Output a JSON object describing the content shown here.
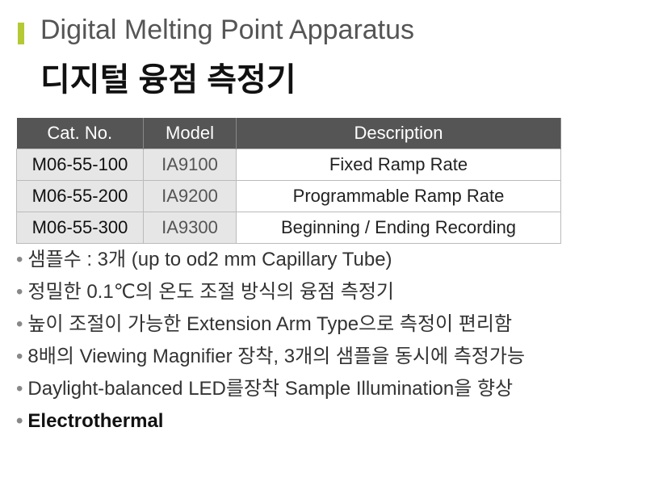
{
  "header": {
    "title": "Digital Melting Point Apparatus",
    "subtitle": "디지털 융점 측정기"
  },
  "table": {
    "columns": [
      "Cat. No.",
      "Model",
      "Description"
    ],
    "rows": [
      [
        "M06-55-100",
        "IA9100",
        "Fixed Ramp Rate"
      ],
      [
        "M06-55-200",
        "IA9200",
        "Programmable Ramp Rate"
      ],
      [
        "M06-55-300",
        "IA9300",
        "Beginning / Ending Recording"
      ]
    ]
  },
  "bullets": [
    "샘플수 : 3개 (up to od2 mm Capillary Tube)",
    "정밀한 0.1℃의 온도 조절 방식의 융점 측정기",
    "높이 조절이 가능한 Extension Arm Type으로 측정이 편리함",
    "8배의 Viewing Magnifier 장착, 3개의 샘플을 동시에 측정가능",
    "Daylight-balanced LED를장착 Sample Illumination을 향상",
    "Electrothermal"
  ]
}
